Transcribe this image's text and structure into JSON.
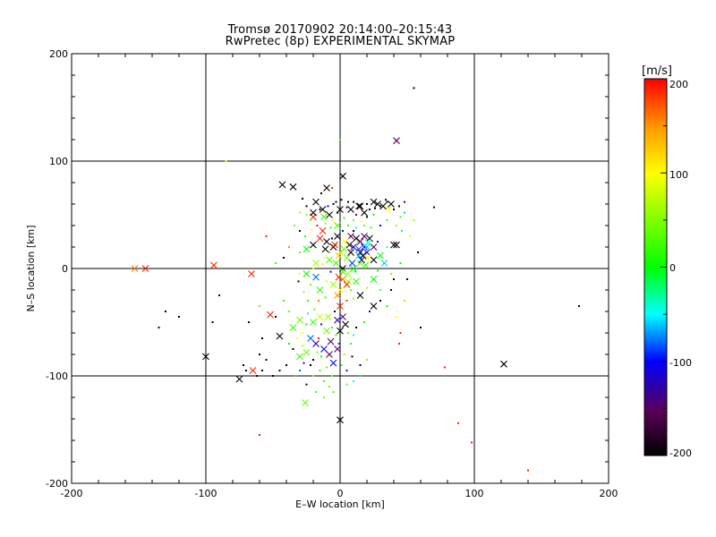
{
  "chart_data": {
    "type": "scatter",
    "title": "Tromsø 20170902 20:14:00–20:15:43",
    "subtitle": "RwPretec (8p) EXPERIMENTAL SKYMAP",
    "xlabel": "E–W location [km]",
    "ylabel": "N–S location [km]",
    "xlim": [
      -200,
      200
    ],
    "ylim": [
      -200,
      200
    ],
    "xticks": [
      "-200",
      "-100",
      "0",
      "100",
      "200"
    ],
    "yticks": [
      "-200",
      "-100",
      "0",
      "100",
      "200"
    ],
    "grid": true,
    "colorbar": {
      "label": "[m/s]",
      "range": [
        -200,
        200
      ],
      "ticks": [
        "200",
        "100",
        "0",
        "-100",
        "-200"
      ],
      "colormap": "black-purple-blue-cyan-green-yellow-orange-red"
    },
    "markers": {
      "small": "dot",
      "large": "x"
    },
    "points": [
      [
        55,
        168,
        -200,
        0
      ],
      [
        42,
        119,
        -150,
        1
      ],
      [
        0,
        120,
        20,
        0
      ],
      [
        -85,
        100,
        100,
        0
      ],
      [
        2,
        86,
        -200,
        1
      ],
      [
        -43,
        78,
        -200,
        1
      ],
      [
        -35,
        76,
        -200,
        1
      ],
      [
        -10,
        75,
        -200,
        1
      ],
      [
        -18,
        62,
        -200,
        1
      ],
      [
        -5,
        60,
        -200,
        0
      ],
      [
        0,
        55,
        -200,
        1
      ],
      [
        5,
        57,
        -150,
        0
      ],
      [
        10,
        62,
        -200,
        0
      ],
      [
        15,
        58,
        -200,
        1
      ],
      [
        20,
        60,
        -200,
        0
      ],
      [
        25,
        62,
        -200,
        1
      ],
      [
        30,
        58,
        -200,
        0
      ],
      [
        35,
        62,
        -200,
        0
      ],
      [
        28,
        60,
        -200,
        1
      ],
      [
        22,
        55,
        -200,
        0
      ],
      [
        18,
        52,
        -200,
        1
      ],
      [
        12,
        50,
        -150,
        0
      ],
      [
        8,
        55,
        -200,
        1
      ],
      [
        -2,
        52,
        -200,
        0
      ],
      [
        -8,
        50,
        -200,
        1
      ],
      [
        -15,
        55,
        -200,
        0
      ],
      [
        -20,
        48,
        190,
        1
      ],
      [
        -25,
        50,
        50,
        0
      ],
      [
        -22,
        45,
        40,
        0
      ],
      [
        -30,
        52,
        60,
        0
      ],
      [
        -12,
        48,
        20,
        1
      ],
      [
        -5,
        45,
        100,
        0
      ],
      [
        3,
        47,
        20,
        0
      ],
      [
        10,
        45,
        40,
        0
      ],
      [
        16,
        44,
        100,
        0
      ],
      [
        25,
        50,
        0,
        0
      ],
      [
        36,
        55,
        100,
        1
      ],
      [
        45,
        48,
        20,
        0
      ],
      [
        48,
        52,
        -60,
        0
      ],
      [
        55,
        45,
        60,
        0
      ],
      [
        70,
        57,
        -200,
        0
      ],
      [
        -14,
        70,
        -200,
        0
      ],
      [
        -6,
        75,
        190,
        0
      ],
      [
        -28,
        65,
        -200,
        0
      ],
      [
        -25,
        58,
        -200,
        0
      ],
      [
        -20,
        52,
        -200,
        1
      ],
      [
        32,
        58,
        -200,
        1
      ],
      [
        40,
        55,
        -200,
        0
      ],
      [
        -2,
        40,
        20,
        1
      ],
      [
        2,
        35,
        -100,
        0
      ],
      [
        8,
        30,
        -150,
        1
      ],
      [
        12,
        28,
        -200,
        1
      ],
      [
        15,
        25,
        -150,
        1
      ],
      [
        18,
        20,
        -100,
        1
      ],
      [
        20,
        15,
        -120,
        1
      ],
      [
        14,
        12,
        -60,
        1
      ],
      [
        8,
        15,
        -200,
        1
      ],
      [
        5,
        10,
        40,
        1
      ],
      [
        0,
        15,
        80,
        1
      ],
      [
        -5,
        20,
        -200,
        1
      ],
      [
        -10,
        25,
        -200,
        1
      ],
      [
        -15,
        28,
        190,
        1
      ],
      [
        -20,
        22,
        -200,
        1
      ],
      [
        -25,
        18,
        0,
        1
      ],
      [
        -30,
        15,
        40,
        0
      ],
      [
        -3,
        5,
        20,
        1
      ],
      [
        2,
        0,
        -200,
        1
      ],
      [
        6,
        -5,
        60,
        1
      ],
      [
        10,
        0,
        0,
        1
      ],
      [
        15,
        5,
        40,
        1
      ],
      [
        20,
        10,
        100,
        1
      ],
      [
        25,
        8,
        -200,
        1
      ],
      [
        30,
        12,
        0,
        1
      ],
      [
        35,
        20,
        -50,
        0
      ],
      [
        40,
        22,
        -200,
        1
      ],
      [
        -8,
        8,
        30,
        1
      ],
      [
        -12,
        10,
        100,
        0
      ],
      [
        -18,
        5,
        60,
        1
      ],
      [
        -20,
        0,
        80,
        0
      ],
      [
        -25,
        -5,
        0,
        1
      ],
      [
        22,
        28,
        -200,
        1
      ],
      [
        28,
        25,
        -100,
        0
      ],
      [
        18,
        30,
        -150,
        1
      ],
      [
        10,
        35,
        -200,
        0
      ],
      [
        4,
        25,
        100,
        1
      ],
      [
        -2,
        30,
        -200,
        1
      ],
      [
        -4,
        22,
        190,
        1
      ],
      [
        -8,
        15,
        150,
        0
      ],
      [
        -6,
        28,
        -200,
        0
      ],
      [
        14,
        18,
        -80,
        1
      ],
      [
        16,
        8,
        -120,
        1
      ],
      [
        19,
        3,
        20,
        1
      ],
      [
        11,
        -3,
        0,
        0
      ],
      [
        2,
        -10,
        160,
        1
      ],
      [
        5,
        -15,
        190,
        1
      ],
      [
        0,
        -20,
        100,
        1
      ],
      [
        -5,
        -15,
        60,
        1
      ],
      [
        8,
        -20,
        40,
        0
      ],
      [
        12,
        -12,
        20,
        1
      ],
      [
        -10,
        -12,
        80,
        0
      ],
      [
        -2,
        -25,
        150,
        1
      ],
      [
        5,
        -30,
        180,
        0
      ],
      [
        10,
        -28,
        40,
        0
      ],
      [
        15,
        -25,
        -200,
        1
      ],
      [
        -15,
        -20,
        20,
        1
      ],
      [
        -18,
        -8,
        -80,
        1
      ],
      [
        -22,
        -15,
        40,
        0
      ],
      [
        -30,
        -5,
        100,
        0
      ],
      [
        20,
        -18,
        60,
        0
      ],
      [
        25,
        -10,
        0,
        1
      ],
      [
        0,
        -35,
        190,
        1
      ],
      [
        -4,
        -40,
        -200,
        0
      ],
      [
        2,
        -45,
        -150,
        1
      ],
      [
        -2,
        -48,
        -120,
        1
      ],
      [
        4,
        -52,
        -200,
        1
      ],
      [
        -6,
        -55,
        20,
        0
      ],
      [
        0,
        -58,
        -200,
        1
      ],
      [
        6,
        -60,
        40,
        0
      ],
      [
        10,
        -62,
        -50,
        0
      ],
      [
        -10,
        -58,
        40,
        1
      ],
      [
        -15,
        -45,
        80,
        1
      ],
      [
        -20,
        -50,
        20,
        1
      ],
      [
        -25,
        -52,
        0,
        0
      ],
      [
        -30,
        -48,
        40,
        1
      ],
      [
        -35,
        -55,
        20,
        1
      ],
      [
        -28,
        -60,
        100,
        0
      ],
      [
        -22,
        -65,
        -80,
        1
      ],
      [
        -18,
        -70,
        -120,
        1
      ],
      [
        -12,
        -75,
        -100,
        1
      ],
      [
        -8,
        -80,
        -150,
        1
      ],
      [
        -14,
        -82,
        0,
        0
      ],
      [
        -20,
        -85,
        -200,
        0
      ],
      [
        -25,
        -78,
        40,
        1
      ],
      [
        -30,
        -82,
        20,
        1
      ],
      [
        -35,
        -75,
        -200,
        0
      ],
      [
        -5,
        -88,
        -100,
        1
      ],
      [
        -10,
        -92,
        40,
        0
      ],
      [
        -15,
        -95,
        20,
        0
      ],
      [
        -20,
        -100,
        60,
        0
      ],
      [
        -12,
        -105,
        20,
        0
      ],
      [
        -8,
        -110,
        40,
        0
      ],
      [
        -25,
        -108,
        -200,
        0
      ],
      [
        -30,
        -95,
        -80,
        0
      ],
      [
        -40,
        -90,
        -200,
        0
      ],
      [
        -45,
        -95,
        -200,
        0
      ],
      [
        -50,
        -100,
        -200,
        0
      ],
      [
        -55,
        -85,
        -200,
        0
      ],
      [
        -60,
        -80,
        -200,
        0
      ],
      [
        -58,
        -95,
        -200,
        0
      ],
      [
        -62,
        -100,
        -200,
        0
      ],
      [
        -65,
        -95,
        190,
        1
      ],
      [
        -72,
        -90,
        -200,
        0
      ],
      [
        -75,
        -103,
        -200,
        1
      ],
      [
        -70,
        -95,
        -200,
        0
      ],
      [
        -100,
        -82,
        -200,
        1
      ],
      [
        -45,
        -63,
        -200,
        1
      ],
      [
        -58,
        -65,
        -200,
        0
      ],
      [
        -68,
        -50,
        -200,
        0
      ],
      [
        -52,
        -43,
        190,
        1
      ],
      [
        -60,
        -35,
        40,
        0
      ],
      [
        -66,
        -5,
        190,
        1
      ],
      [
        -48,
        -45,
        -200,
        0
      ],
      [
        -90,
        -25,
        -200,
        0
      ],
      [
        -95,
        -50,
        -200,
        0
      ],
      [
        -120,
        -45,
        -200,
        0
      ],
      [
        -130,
        -40,
        -200,
        0
      ],
      [
        -135,
        -55,
        -200,
        0
      ],
      [
        -145,
        0,
        190,
        1
      ],
      [
        -153,
        0,
        160,
        1
      ],
      [
        -94,
        3,
        190,
        1
      ],
      [
        -38,
        20,
        160,
        0
      ],
      [
        -42,
        10,
        -200,
        0
      ],
      [
        -48,
        5,
        20,
        0
      ],
      [
        -55,
        30,
        190,
        0
      ],
      [
        0,
        -141,
        -200,
        1
      ],
      [
        -26,
        -125,
        40,
        1
      ],
      [
        -5,
        -115,
        20,
        0
      ],
      [
        5,
        -108,
        40,
        0
      ],
      [
        10,
        -105,
        -50,
        0
      ],
      [
        15,
        -100,
        20,
        0
      ],
      [
        5,
        -95,
        -100,
        0
      ],
      [
        15,
        -90,
        -200,
        0
      ],
      [
        20,
        -85,
        60,
        0
      ],
      [
        -2,
        -75,
        -150,
        1
      ],
      [
        8,
        -70,
        20,
        0
      ],
      [
        12,
        -55,
        -200,
        0
      ],
      [
        18,
        -50,
        0,
        0
      ],
      [
        22,
        -40,
        -120,
        0
      ],
      [
        25,
        -35,
        -200,
        1
      ],
      [
        30,
        -30,
        -200,
        0
      ],
      [
        35,
        -35,
        0,
        0
      ],
      [
        30,
        -20,
        40,
        0
      ],
      [
        38,
        -20,
        -200,
        0
      ],
      [
        42,
        -45,
        100,
        0
      ],
      [
        45,
        -60,
        190,
        0
      ],
      [
        60,
        -55,
        -200,
        0
      ],
      [
        44,
        -70,
        190,
        0
      ],
      [
        78,
        -92,
        190,
        0
      ],
      [
        88,
        -144,
        190,
        0
      ],
      [
        98,
        -162,
        190,
        0
      ],
      [
        140,
        -188,
        190,
        0
      ],
      [
        122,
        -89,
        -200,
        1
      ],
      [
        178,
        -35,
        -200,
        0
      ],
      [
        -60,
        -155,
        190,
        0
      ],
      [
        42,
        22,
        -200,
        1
      ],
      [
        52,
        30,
        100,
        0
      ],
      [
        58,
        15,
        -200,
        0
      ],
      [
        45,
        5,
        0,
        0
      ],
      [
        50,
        -10,
        -200,
        0
      ],
      [
        38,
        -5,
        40,
        0
      ],
      [
        33,
        5,
        -60,
        1
      ],
      [
        28,
        -2,
        0,
        0
      ],
      [
        10,
        20,
        -120,
        1
      ],
      [
        20,
        20,
        -60,
        1
      ],
      [
        25,
        20,
        -150,
        1
      ],
      [
        7,
        22,
        -180,
        1
      ],
      [
        15,
        15,
        -140,
        1
      ],
      [
        3,
        18,
        40,
        1
      ],
      [
        -1,
        12,
        130,
        1
      ],
      [
        9,
        5,
        -90,
        1
      ],
      [
        13,
        25,
        60,
        0
      ],
      [
        17,
        12,
        -200,
        1
      ],
      [
        21,
        24,
        -40,
        1
      ],
      [
        -11,
        18,
        -200,
        1
      ],
      [
        -13,
        4,
        120,
        0
      ],
      [
        2,
        -3,
        20,
        1
      ],
      [
        6,
        -12,
        60,
        1
      ],
      [
        -1,
        -8,
        190,
        1
      ],
      [
        -7,
        -3,
        -100,
        0
      ],
      [
        -16,
        -30,
        160,
        0
      ],
      [
        -19,
        -38,
        40,
        0
      ],
      [
        -24,
        -42,
        -30,
        0
      ],
      [
        -9,
        -45,
        60,
        1
      ],
      [
        -14,
        -52,
        -100,
        0
      ],
      [
        -3,
        -62,
        20,
        0
      ],
      [
        -1,
        -70,
        -80,
        0
      ],
      [
        3,
        -80,
        60,
        0
      ],
      [
        -7,
        -68,
        -150,
        1
      ],
      [
        -17,
        -78,
        40,
        0
      ],
      [
        -22,
        -90,
        -200,
        0
      ],
      [
        -28,
        -72,
        60,
        0
      ],
      [
        -32,
        -65,
        100,
        0
      ],
      [
        -38,
        -70,
        0,
        0
      ],
      [
        -27,
        -88,
        -150,
        0
      ],
      [
        -33,
        -100,
        20,
        0
      ],
      [
        -6,
        -100,
        60,
        0
      ],
      [
        1,
        -90,
        20,
        0
      ],
      [
        9,
        -82,
        -200,
        0
      ],
      [
        -12,
        -120,
        40,
        0
      ],
      [
        -18,
        -115,
        20,
        0
      ],
      [
        -16,
        -65,
        190,
        0
      ],
      [
        -24,
        -30,
        20,
        0
      ],
      [
        -27,
        -22,
        60,
        0
      ],
      [
        -11,
        -27,
        20,
        0
      ],
      [
        -31,
        -12,
        -200,
        0
      ],
      [
        -7,
        38,
        20,
        0
      ],
      [
        -11,
        42,
        60,
        0
      ],
      [
        -17,
        40,
        190,
        0
      ],
      [
        -21,
        36,
        100,
        0
      ],
      [
        -26,
        30,
        20,
        0
      ],
      [
        -30,
        35,
        -200,
        0
      ],
      [
        -34,
        40,
        40,
        0
      ],
      [
        -13,
        35,
        190,
        1
      ],
      [
        6,
        40,
        20,
        0
      ],
      [
        12,
        38,
        -50,
        0
      ],
      [
        18,
        40,
        40,
        0
      ],
      [
        23,
        38,
        20,
        0
      ],
      [
        30,
        40,
        -100,
        0
      ],
      [
        35,
        45,
        20,
        0
      ],
      [
        42,
        40,
        60,
        0
      ],
      [
        46,
        35,
        20,
        0
      ],
      [
        20,
        48,
        -200,
        0
      ],
      [
        14,
        58,
        -200,
        1
      ],
      [
        6,
        62,
        -200,
        0
      ],
      [
        1,
        64,
        -200,
        0
      ],
      [
        -3,
        62,
        -200,
        0
      ],
      [
        -9,
        58,
        -100,
        0
      ],
      [
        -13,
        55,
        -200,
        1
      ],
      [
        26,
        56,
        -200,
        0
      ],
      [
        34,
        64,
        -200,
        0
      ],
      [
        38,
        60,
        -200,
        1
      ],
      [
        44,
        58,
        -200,
        0
      ],
      [
        48,
        62,
        -100,
        0
      ],
      [
        -38,
        -40,
        40,
        0
      ],
      [
        -42,
        -30,
        20,
        0
      ],
      [
        48,
        -30,
        60,
        0
      ],
      [
        40,
        -10,
        -200,
        0
      ]
    ]
  }
}
